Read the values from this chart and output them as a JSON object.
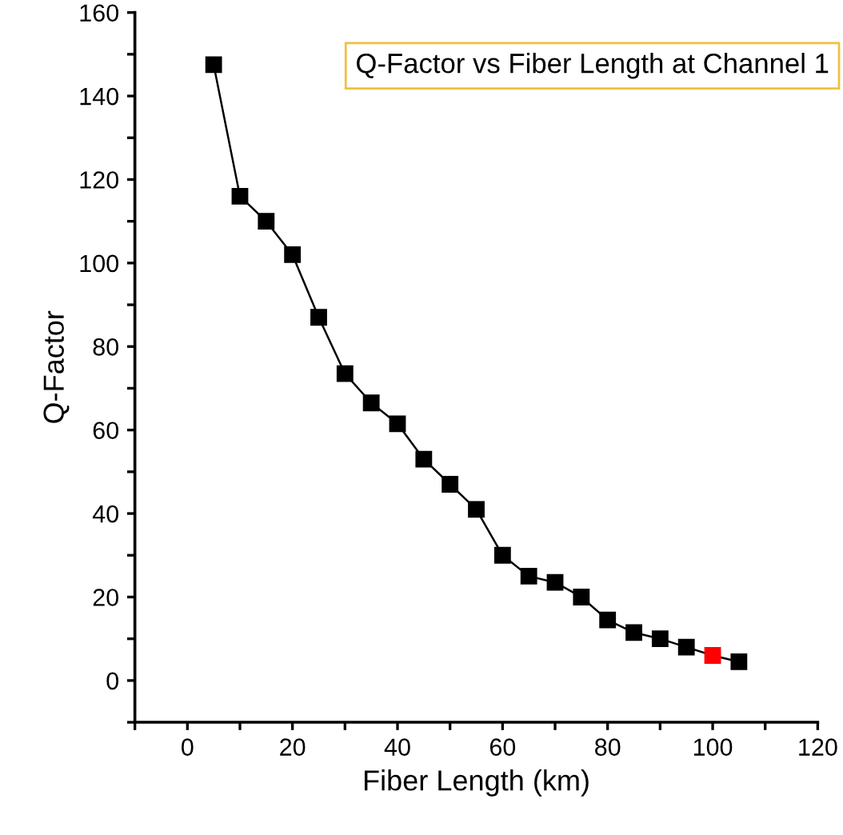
{
  "chart_data": {
    "type": "line",
    "title": "Q-Factor vs Fiber Length at Channel 1",
    "xlabel": "Fiber Length (km)",
    "ylabel": "Q-Factor",
    "x": [
      5,
      10,
      15,
      20,
      25,
      30,
      35,
      40,
      45,
      50,
      55,
      60,
      65,
      70,
      75,
      80,
      85,
      90,
      95,
      100,
      105
    ],
    "series": [
      {
        "color": "#000000",
        "colors": [
          "#000000",
          "#000000",
          "#000000",
          "#000000",
          "#000000",
          "#000000",
          "#000000",
          "#000000",
          "#000000",
          "#000000",
          "#000000",
          "#000000",
          "#000000",
          "#000000",
          "#000000",
          "#000000",
          "#000000",
          "#000000",
          "#000000",
          "#ff0000",
          "#000000"
        ],
        "values": [
          147.5,
          116,
          110,
          102,
          87,
          73.5,
          66.5,
          61.5,
          53,
          47,
          41,
          30,
          25,
          23.5,
          20,
          14.5,
          11.5,
          10,
          8,
          6,
          4.5
        ]
      }
    ],
    "marker": "square",
    "line_style": "solid",
    "grid": false,
    "legend": false,
    "xlim": [
      -10,
      120
    ],
    "xticks": [
      {
        "value": -10,
        "label": null
      },
      0,
      {
        "value": 10,
        "label": null
      },
      20,
      {
        "value": 30,
        "label": null
      },
      40,
      {
        "value": 50,
        "label": null
      },
      60,
      {
        "value": 70,
        "label": null
      },
      80,
      {
        "value": 90,
        "label": null
      },
      100,
      {
        "value": 110,
        "label": null
      },
      120
    ],
    "ylim": [
      -10,
      160
    ],
    "yticks": [
      {
        "value": -10,
        "label": null
      },
      0,
      {
        "value": 10,
        "label": null
      },
      20,
      {
        "value": 30,
        "label": null
      },
      40,
      {
        "value": 50,
        "label": null
      },
      60,
      {
        "value": 70,
        "label": null
      },
      80,
      {
        "value": 90,
        "label": null
      },
      100,
      {
        "value": 110,
        "label": null
      },
      120,
      {
        "value": 130,
        "label": null
      },
      140,
      {
        "value": 150,
        "label": null
      },
      160
    ]
  }
}
